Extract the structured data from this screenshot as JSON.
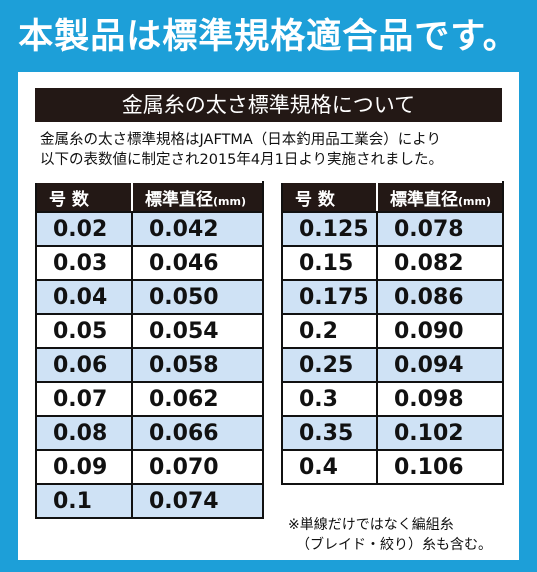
{
  "header": {
    "title": "本製品は標準規格適合品です。"
  },
  "section": {
    "title": "金属糸の太さ標準規格について",
    "description": [
      "金属糸の太さ標準規格はJAFTMA（日本釣用品工業会）により",
      "以下の表数値に制定され2015年4月1日より実施されました。"
    ]
  },
  "table": {
    "headers": {
      "gauge": "号 数",
      "diameter": "標準直径",
      "unit": "(mm)"
    },
    "left_rows": [
      [
        "0.02",
        "0.042"
      ],
      [
        "0.03",
        "0.046"
      ],
      [
        "0.04",
        "0.050"
      ],
      [
        "0.05",
        "0.054"
      ],
      [
        "0.06",
        "0.058"
      ],
      [
        "0.07",
        "0.062"
      ],
      [
        "0.08",
        "0.066"
      ],
      [
        "0.09",
        "0.070"
      ],
      [
        "0.1",
        "0.074"
      ]
    ],
    "right_rows": [
      [
        "0.125",
        "0.078"
      ],
      [
        "0.15",
        "0.082"
      ],
      [
        "0.175",
        "0.086"
      ],
      [
        "0.2",
        "0.090"
      ],
      [
        "0.25",
        "0.094"
      ],
      [
        "0.3",
        "0.098"
      ],
      [
        "0.35",
        "0.102"
      ],
      [
        "0.4",
        "0.106"
      ]
    ]
  },
  "note": [
    "※単線だけではなく編組糸",
    "（ブレイド・絞り）糸も含む。"
  ]
}
